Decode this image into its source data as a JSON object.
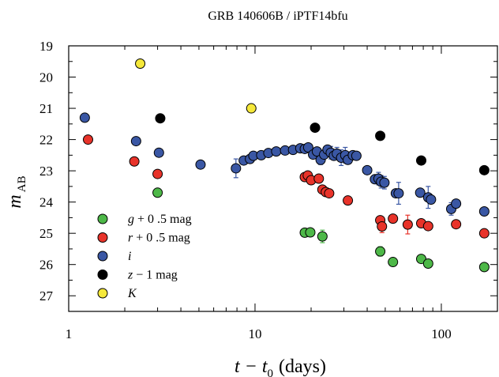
{
  "chart_data": {
    "type": "scatter",
    "title": "GRB 140606B / iPTF14bfu",
    "xlabel": "t − t",
    "xlabel_sub": "0",
    "xlabel_units": "(days)",
    "ylabel": "m",
    "ylabel_sub": "AB",
    "xscale": "log",
    "xlim": [
      1,
      200
    ],
    "ylim": [
      27.5,
      19
    ],
    "x_ticks": [
      1,
      10,
      100
    ],
    "x_tick_labels": [
      "1",
      "10",
      "100"
    ],
    "y_ticks": [
      19,
      20,
      21,
      22,
      23,
      24,
      25,
      26,
      27
    ],
    "y_tick_labels": [
      "19",
      "20",
      "21",
      "22",
      "23",
      "24",
      "25",
      "26",
      "27"
    ],
    "grid": false,
    "legend_position": "bottom-left",
    "series": [
      {
        "name": "g + 0 .5 mag",
        "legend_parts": [
          "g",
          " + 0 .5 mag"
        ],
        "color": "#4db848",
        "points": [
          {
            "x": 3.0,
            "y": 23.7
          },
          {
            "x": 18.5,
            "y": 24.98
          },
          {
            "x": 19.8,
            "y": 24.97
          },
          {
            "x": 23.0,
            "y": 25.1,
            "err": 0.2
          },
          {
            "x": 47.0,
            "y": 25.58,
            "err": 0.15
          },
          {
            "x": 55.0,
            "y": 25.92
          },
          {
            "x": 78.0,
            "y": 25.82
          },
          {
            "x": 85.0,
            "y": 25.97
          },
          {
            "x": 170.0,
            "y": 26.08
          }
        ]
      },
      {
        "name": "r + 0 .5 mag",
        "legend_parts": [
          "r",
          " + 0 .5 mag"
        ],
        "color": "#e8332a",
        "points": [
          {
            "x": 1.27,
            "y": 22.0
          },
          {
            "x": 2.25,
            "y": 22.7
          },
          {
            "x": 3.0,
            "y": 23.1
          },
          {
            "x": 18.5,
            "y": 23.2
          },
          {
            "x": 19.2,
            "y": 23.15
          },
          {
            "x": 20.0,
            "y": 23.3
          },
          {
            "x": 22.0,
            "y": 23.25
          },
          {
            "x": 23.0,
            "y": 23.6
          },
          {
            "x": 24.0,
            "y": 23.68
          },
          {
            "x": 25.0,
            "y": 23.72
          },
          {
            "x": 31.5,
            "y": 23.95
          },
          {
            "x": 47.0,
            "y": 24.58
          },
          {
            "x": 48.0,
            "y": 24.78,
            "err": 0.2
          },
          {
            "x": 55.0,
            "y": 24.53
          },
          {
            "x": 66.0,
            "y": 24.72,
            "err": 0.3
          },
          {
            "x": 78.0,
            "y": 24.68
          },
          {
            "x": 85.0,
            "y": 24.77
          },
          {
            "x": 120.0,
            "y": 24.71
          },
          {
            "x": 170.0,
            "y": 25.0
          }
        ]
      },
      {
        "name": "i",
        "legend_parts": [
          "i",
          ""
        ],
        "color": "#3a57a4",
        "points": [
          {
            "x": 1.22,
            "y": 21.3
          },
          {
            "x": 2.3,
            "y": 22.05
          },
          {
            "x": 3.05,
            "y": 22.42
          },
          {
            "x": 5.1,
            "y": 22.8
          },
          {
            "x": 7.9,
            "y": 22.92,
            "err": 0.3
          },
          {
            "x": 8.7,
            "y": 22.67
          },
          {
            "x": 9.4,
            "y": 22.62
          },
          {
            "x": 9.8,
            "y": 22.52
          },
          {
            "x": 10.8,
            "y": 22.5
          },
          {
            "x": 11.8,
            "y": 22.43
          },
          {
            "x": 13.0,
            "y": 22.38
          },
          {
            "x": 14.5,
            "y": 22.35
          },
          {
            "x": 16.0,
            "y": 22.33
          },
          {
            "x": 17.5,
            "y": 22.28
          },
          {
            "x": 18.5,
            "y": 22.3
          },
          {
            "x": 19.3,
            "y": 22.25
          },
          {
            "x": 20.5,
            "y": 22.48
          },
          {
            "x": 21.5,
            "y": 22.38
          },
          {
            "x": 22.5,
            "y": 22.65,
            "err": 0.15
          },
          {
            "x": 23.5,
            "y": 22.48
          },
          {
            "x": 24.5,
            "y": 22.32
          },
          {
            "x": 25.5,
            "y": 22.42,
            "err": 0.2
          },
          {
            "x": 26.5,
            "y": 22.52
          },
          {
            "x": 27.5,
            "y": 22.45,
            "err": 0.2
          },
          {
            "x": 29.0,
            "y": 22.58,
            "err": 0.25
          },
          {
            "x": 30.5,
            "y": 22.5,
            "err": 0.25
          },
          {
            "x": 31.5,
            "y": 22.65
          },
          {
            "x": 33.5,
            "y": 22.5
          },
          {
            "x": 35.0,
            "y": 22.52
          },
          {
            "x": 40.0,
            "y": 22.98
          },
          {
            "x": 44.0,
            "y": 23.27
          },
          {
            "x": 46.0,
            "y": 23.25,
            "err": 0.2
          },
          {
            "x": 47.5,
            "y": 23.35,
            "err": 0.2
          },
          {
            "x": 49.5,
            "y": 23.38,
            "err": 0.2
          },
          {
            "x": 57.0,
            "y": 23.72
          },
          {
            "x": 59.0,
            "y": 23.72,
            "err": 0.35
          },
          {
            "x": 77.0,
            "y": 23.7
          },
          {
            "x": 85.0,
            "y": 23.85,
            "err": 0.35
          },
          {
            "x": 88.0,
            "y": 23.92
          },
          {
            "x": 113.0,
            "y": 24.22,
            "err": 0.2
          },
          {
            "x": 120.0,
            "y": 24.05
          },
          {
            "x": 170.0,
            "y": 24.3
          }
        ]
      },
      {
        "name": "z − 1 mag",
        "legend_parts": [
          "z",
          " − 1 mag"
        ],
        "color": "#000000",
        "points": [
          {
            "x": 3.1,
            "y": 21.32
          },
          {
            "x": 21.0,
            "y": 21.62
          },
          {
            "x": 47.0,
            "y": 21.88
          },
          {
            "x": 78.0,
            "y": 22.67
          },
          {
            "x": 170.0,
            "y": 22.98
          }
        ]
      },
      {
        "name": "K",
        "legend_parts": [
          "K",
          ""
        ],
        "color": "#f5e83a",
        "points": [
          {
            "x": 2.42,
            "y": 19.57
          },
          {
            "x": 9.55,
            "y": 21.0
          }
        ]
      }
    ]
  }
}
